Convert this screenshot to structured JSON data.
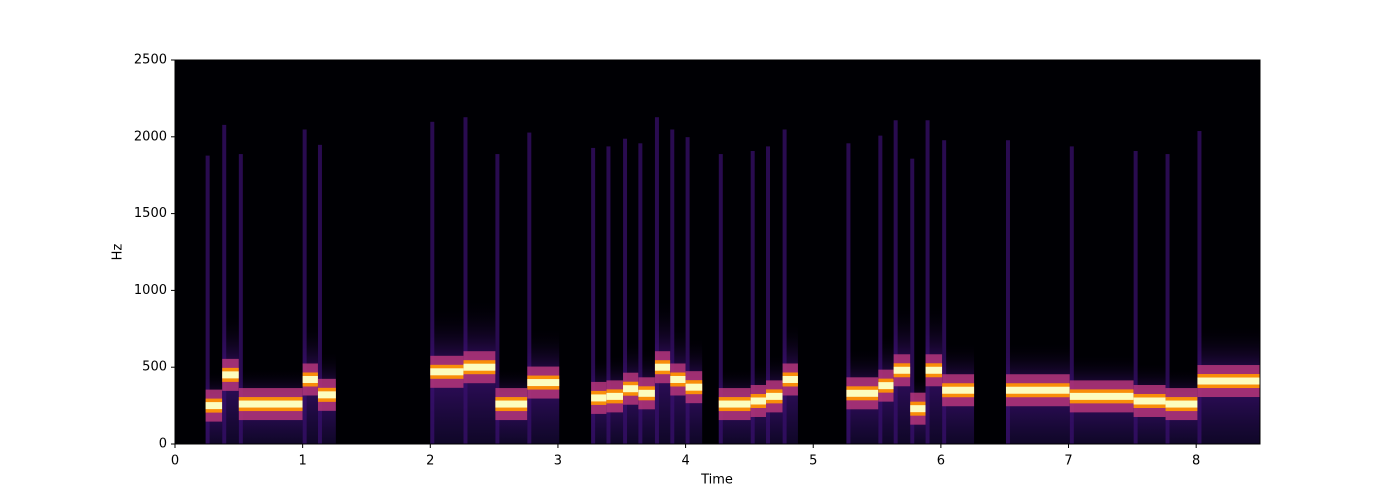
{
  "chart_data": {
    "type": "spectrogram",
    "xlabel": "Time",
    "ylabel": "Hz",
    "xlim": [
      0,
      8.5
    ],
    "ylim": [
      0,
      2500
    ],
    "xticks": [
      0,
      1,
      2,
      3,
      4,
      5,
      6,
      7,
      8
    ],
    "yticks": [
      0,
      500,
      1000,
      1500,
      2000,
      2500
    ],
    "colors": {
      "background": "#000004",
      "low": "#3b0f70",
      "mid": "#b5367a",
      "high": "#fcfdbf"
    },
    "notes": [
      {
        "start": 0.24,
        "end": 0.37,
        "hz": 250
      },
      {
        "start": 0.37,
        "end": 0.5,
        "hz": 450
      },
      {
        "start": 0.5,
        "end": 1.0,
        "hz": 260
      },
      {
        "start": 1.0,
        "end": 1.12,
        "hz": 420
      },
      {
        "start": 1.12,
        "end": 1.26,
        "hz": 320
      },
      {
        "start": 2.0,
        "end": 2.26,
        "hz": 470
      },
      {
        "start": 2.26,
        "end": 2.51,
        "hz": 500
      },
      {
        "start": 2.51,
        "end": 2.76,
        "hz": 260
      },
      {
        "start": 2.76,
        "end": 3.01,
        "hz": 400
      },
      {
        "start": 3.26,
        "end": 3.38,
        "hz": 300
      },
      {
        "start": 3.38,
        "end": 3.51,
        "hz": 310
      },
      {
        "start": 3.51,
        "end": 3.63,
        "hz": 360
      },
      {
        "start": 3.63,
        "end": 3.76,
        "hz": 330
      },
      {
        "start": 3.76,
        "end": 3.88,
        "hz": 500
      },
      {
        "start": 3.88,
        "end": 4.0,
        "hz": 420
      },
      {
        "start": 4.0,
        "end": 4.13,
        "hz": 370
      },
      {
        "start": 4.26,
        "end": 4.51,
        "hz": 260
      },
      {
        "start": 4.51,
        "end": 4.63,
        "hz": 280
      },
      {
        "start": 4.63,
        "end": 4.76,
        "hz": 310
      },
      {
        "start": 4.76,
        "end": 4.88,
        "hz": 420
      },
      {
        "start": 5.26,
        "end": 5.51,
        "hz": 330
      },
      {
        "start": 5.51,
        "end": 5.63,
        "hz": 380
      },
      {
        "start": 5.63,
        "end": 5.76,
        "hz": 480
      },
      {
        "start": 5.76,
        "end": 5.88,
        "hz": 230
      },
      {
        "start": 5.88,
        "end": 6.01,
        "hz": 480
      },
      {
        "start": 6.01,
        "end": 6.26,
        "hz": 350
      },
      {
        "start": 6.51,
        "end": 7.01,
        "hz": 350
      },
      {
        "start": 7.01,
        "end": 7.51,
        "hz": 310
      },
      {
        "start": 7.51,
        "end": 7.76,
        "hz": 280
      },
      {
        "start": 7.76,
        "end": 8.01,
        "hz": 260
      },
      {
        "start": 8.01,
        "end": 8.5,
        "hz": 410
      }
    ]
  }
}
